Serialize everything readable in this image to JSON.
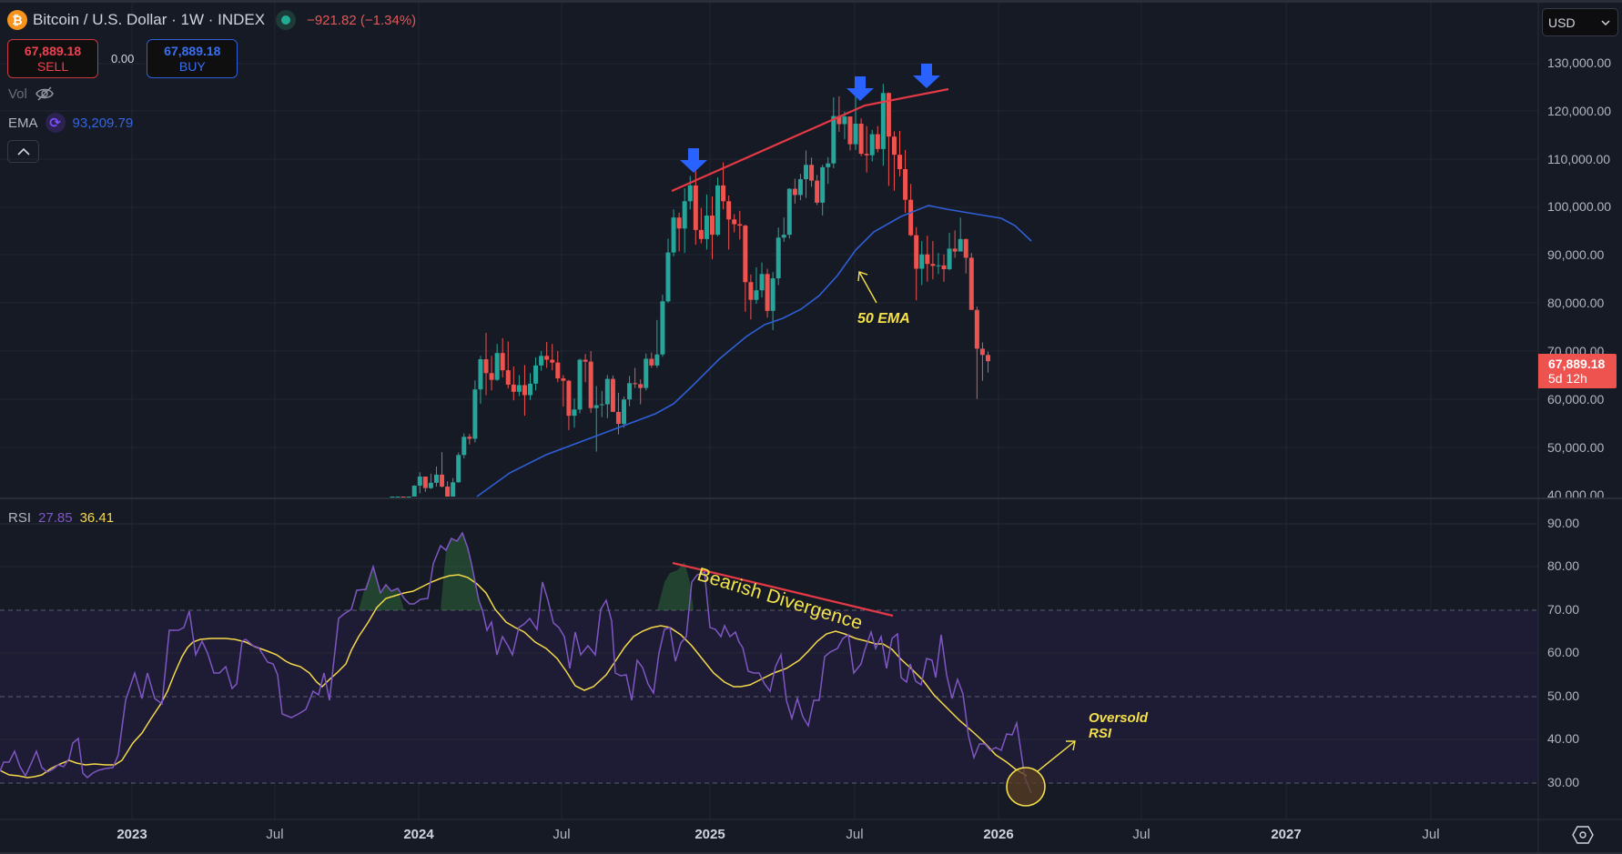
{
  "header": {
    "symbol_title": "Bitcoin / U.S. Dollar · 1W · INDEX",
    "change": "−921.82 (−1.34%)",
    "market_status": "open"
  },
  "trade": {
    "sell_price": "67,889.18",
    "sell_label": "SELL",
    "spread": "0.00",
    "buy_price": "67,889.18",
    "buy_label": "BUY"
  },
  "indicators": {
    "vol_label": "Vol",
    "ema_label": "EMA",
    "ema_value": "93,209.79",
    "rsi_label": "RSI",
    "rsi_value": "27.85",
    "rsi_ma_value": "36.41"
  },
  "price_axis": {
    "currency": "USD",
    "ticks": [
      "130,000.00",
      "120,000.00",
      "110,000.00",
      "100,000.00",
      "90,000.00",
      "80,000.00",
      "70,000.00",
      "60,000.00",
      "50,000.00",
      "40,000.00"
    ],
    "last_price": "67,889.18",
    "countdown": "5d 12h"
  },
  "rsi_axis": {
    "ticks": [
      "90.00",
      "80.00",
      "70.00",
      "60.00",
      "50.00",
      "40.00",
      "30.00"
    ]
  },
  "time_axis": {
    "labels": [
      {
        "text": "2023",
        "year": true
      },
      {
        "text": "Jul",
        "year": false
      },
      {
        "text": "2024",
        "year": true
      },
      {
        "text": "Jul",
        "year": false
      },
      {
        "text": "2025",
        "year": true
      },
      {
        "text": "Jul",
        "year": false
      },
      {
        "text": "2026",
        "year": true
      },
      {
        "text": "Jul",
        "year": false
      },
      {
        "text": "2027",
        "year": true
      },
      {
        "text": "Jul",
        "year": false
      }
    ]
  },
  "annotations": {
    "bearish_divergence": "Bearish Divergence",
    "ema_note": "50 EMA",
    "oversold_line1": "Oversold",
    "oversold_line2": "RSI"
  },
  "colors": {
    "background": "#161a25",
    "up": "#26a69a",
    "down": "#ef5350",
    "ema": "#2f5fd6",
    "rsi": "#7e57c2",
    "rsi_ma": "#f5d94a",
    "trendline": "#e53946",
    "marker_arrow": "#2962ff",
    "annotation": "#f5e14a"
  },
  "chart_data": [
    {
      "type": "candlestick",
      "title": "Bitcoin / U.S. Dollar · 1W · INDEX",
      "timeframe": "1W",
      "ylabel": "USD",
      "ylim": [
        40000,
        132000
      ],
      "x_range": [
        "2022-10",
        "2027-10"
      ],
      "note": "Weekly OHLC, approximate values read from chart, starting late Oct 2023",
      "start_week": "2023-10-23",
      "ohlc": [
        [
          34500,
          35200,
          34000,
          35000
        ],
        [
          35000,
          37500,
          34800,
          37100
        ],
        [
          37100,
          37900,
          35500,
          36600
        ],
        [
          36600,
          38400,
          36000,
          37800
        ],
        [
          37800,
          42000,
          37500,
          41900
        ],
        [
          41900,
          44700,
          40300,
          43800
        ],
        [
          43800,
          43800,
          40600,
          41400
        ],
        [
          41400,
          44400,
          41200,
          42500
        ],
        [
          42500,
          45900,
          41700,
          44200
        ],
        [
          44200,
          48900,
          41500,
          41700
        ],
        [
          41700,
          42800,
          38500,
          39500
        ],
        [
          39500,
          43500,
          39100,
          42600
        ],
        [
          42600,
          48800,
          42500,
          48300
        ],
        [
          48300,
          52800,
          47600,
          52100
        ],
        [
          52100,
          52700,
          50500,
          51700
        ],
        [
          51700,
          63900,
          50900,
          62000
        ],
        [
          62000,
          69000,
          59000,
          68300
        ],
        [
          68300,
          73800,
          60800,
          65400
        ],
        [
          65400,
          69000,
          61800,
          64000
        ],
        [
          64000,
          71500,
          63800,
          69600
        ],
        [
          69600,
          72700,
          64500,
          66000
        ],
        [
          66000,
          72000,
          62200,
          63000
        ],
        [
          63000,
          66800,
          59700,
          61500
        ],
        [
          61500,
          65000,
          60600,
          62900
        ],
        [
          62900,
          67100,
          56500,
          60800
        ],
        [
          60800,
          65400,
          59800,
          63200
        ],
        [
          63200,
          68700,
          61800,
          67000
        ],
        [
          67000,
          70000,
          65900,
          69000
        ],
        [
          69000,
          71900,
          66500,
          68200
        ],
        [
          68200,
          71500,
          66000,
          67600
        ],
        [
          67600,
          70000,
          63500,
          64300
        ],
        [
          64300,
          65000,
          58400,
          63800
        ],
        [
          63800,
          64000,
          53500,
          56500
        ],
        [
          56500,
          60100,
          54000,
          57800
        ],
        [
          57800,
          68400,
          57000,
          68200
        ],
        [
          68200,
          69400,
          63500,
          67800
        ],
        [
          67800,
          70000,
          57100,
          58100
        ],
        [
          58100,
          62700,
          49000,
          58700
        ],
        [
          58700,
          61700,
          56200,
          58900
        ],
        [
          58900,
          65000,
          56000,
          64200
        ],
        [
          64200,
          64900,
          57600,
          57300
        ],
        [
          57300,
          61300,
          52600,
          54800
        ],
        [
          54800,
          60500,
          54000,
          59900
        ],
        [
          59900,
          64800,
          58500,
          63300
        ],
        [
          63300,
          66500,
          62300,
          63100
        ],
        [
          63100,
          64100,
          58900,
          62300
        ],
        [
          62300,
          69500,
          61800,
          68400
        ],
        [
          68400,
          69700,
          66500,
          67000
        ],
        [
          67000,
          76500,
          66500,
          69300
        ],
        [
          69300,
          81800,
          68800,
          80400
        ],
        [
          80400,
          93500,
          80100,
          90600
        ],
        [
          90600,
          99600,
          89800,
          97900
        ],
        [
          97900,
          98900,
          90800,
          95600
        ],
        [
          95600,
          104000,
          90500,
          101300
        ],
        [
          101300,
          106600,
          99600,
          104600
        ],
        [
          104600,
          108300,
          92200,
          95300
        ],
        [
          95300,
          99900,
          92500,
          93400
        ],
        [
          93400,
          102700,
          91200,
          98300
        ],
        [
          98300,
          102300,
          89200,
          94300
        ],
        [
          94300,
          106300,
          94000,
          104600
        ],
        [
          104600,
          109400,
          99600,
          101300
        ],
        [
          101300,
          102500,
          91200,
          97500
        ],
        [
          97500,
          98600,
          94800,
          96500
        ],
        [
          96500,
          99300,
          93300,
          96200
        ],
        [
          96200,
          96400,
          78200,
          84400
        ],
        [
          84400,
          86000,
          76600,
          80700
        ],
        [
          80700,
          87500,
          79900,
          82700
        ],
        [
          82700,
          88500,
          81200,
          86100
        ],
        [
          86100,
          87200,
          77000,
          78400
        ],
        [
          78400,
          86500,
          74400,
          85200
        ],
        [
          85200,
          95800,
          83800,
          93700
        ],
        [
          93700,
          97900,
          92800,
          94300
        ],
        [
          94300,
          104000,
          93500,
          103900
        ],
        [
          103900,
          106000,
          100800,
          102600
        ],
        [
          102600,
          107000,
          101500,
          105900
        ],
        [
          105900,
          111900,
          102000,
          108900
        ],
        [
          108900,
          110400,
          104300,
          105600
        ],
        [
          105600,
          106800,
          100500,
          101000
        ],
        [
          101000,
          108900,
          98300,
          108400
        ],
        [
          108400,
          110500,
          104900,
          109200
        ],
        [
          109200,
          123000,
          108200,
          119100
        ],
        [
          119100,
          123200,
          115800,
          117400
        ],
        [
          117400,
          120000,
          114300,
          119000
        ],
        [
          119000,
          119000,
          111900,
          113200
        ],
        [
          113200,
          124500,
          112000,
          117500
        ],
        [
          117500,
          118600,
          110700,
          111200
        ],
        [
          111200,
          117000,
          107300,
          110900
        ],
        [
          110900,
          116200,
          109600,
          115300
        ],
        [
          115300,
          117000,
          111500,
          112200
        ],
        [
          112200,
          125800,
          108700,
          123900
        ],
        [
          123900,
          124000,
          104500,
          114800
        ],
        [
          114800,
          115900,
          103500,
          111000
        ],
        [
          111000,
          116000,
          106500,
          108000
        ],
        [
          108000,
          112000,
          98900,
          101600
        ],
        [
          101600,
          104900,
          94000,
          94200
        ],
        [
          94200,
          95900,
          80600,
          87200
        ],
        [
          87200,
          93000,
          83800,
          90200
        ],
        [
          90200,
          94100,
          84500,
          88200
        ],
        [
          88200,
          93000,
          85000,
          87800
        ],
        [
          87800,
          90500,
          86100,
          87900
        ],
        [
          87900,
          90200,
          84500,
          87100
        ],
        [
          87100,
          94700,
          86900,
          91400
        ],
        [
          91400,
          95200,
          89500,
          90800
        ],
        [
          90800,
          97900,
          91000,
          93400
        ],
        [
          93400,
          93500,
          86200,
          89500
        ],
        [
          89500,
          90500,
          81000,
          78600
        ],
        [
          78600,
          79300,
          60000,
          70500
        ],
        [
          70500,
          71800,
          63800,
          69200
        ],
        [
          69200,
          69900,
          65500,
          67889
        ]
      ],
      "ema50": {
        "name": "EMA 50",
        "last": 93209.79,
        "points_approx": [
          [
            "2024-01",
            40000
          ],
          [
            "2024-07",
            57000
          ],
          [
            "2024-12",
            74000
          ],
          [
            "2025-04",
            79000
          ],
          [
            "2025-07",
            92000
          ],
          [
            "2025-10",
            101500
          ],
          [
            "2026-01",
            97000
          ],
          [
            "2026-02",
            93210
          ]
        ]
      },
      "markers": [
        {
          "type": "down-arrow",
          "date": "2024-12-16",
          "price": 106000
        },
        {
          "type": "down-arrow",
          "date": "2025-07-14",
          "price": 123000
        },
        {
          "type": "down-arrow",
          "date": "2025-10-06",
          "price": 126000
        }
      ],
      "trendlines": [
        {
          "name": "rising highs",
          "points": [
            [
              "2024-11-25",
              103000
            ],
            [
              "2025-07-21",
              121500
            ],
            [
              "2025-10-20",
              124800
            ]
          ]
        }
      ],
      "annotations": [
        "50 EMA",
        "Bearish Divergence",
        "Oversold RSI"
      ]
    },
    {
      "type": "line",
      "title": "RSI",
      "ylim": [
        25,
        95
      ],
      "bands": {
        "upper": 70,
        "middle": 50,
        "lower": 30
      },
      "series": [
        {
          "name": "RSI(14)",
          "last": 27.85,
          "color": "#7e57c2"
        },
        {
          "name": "RSI MA",
          "last": 36.41,
          "color": "#f5d94a"
        }
      ],
      "key_points": [
        {
          "date": "2023-05",
          "rsi": 70
        },
        {
          "date": "2023-11",
          "rsi": 83
        },
        {
          "date": "2024-03",
          "rsi": 89
        },
        {
          "date": "2024-12",
          "rsi": 79
        },
        {
          "date": "2025-07",
          "rsi": 71
        },
        {
          "date": "2026-02",
          "rsi": 27.85
        }
      ],
      "yticks": [
        30,
        40,
        50,
        60,
        70,
        80,
        90
      ]
    }
  ]
}
